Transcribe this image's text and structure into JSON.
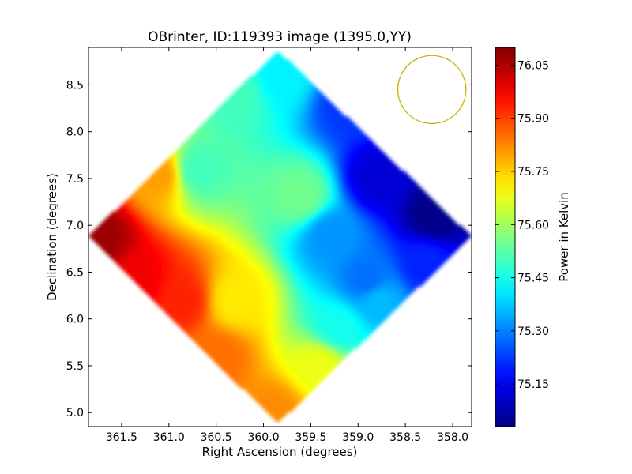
{
  "chart_data": {
    "type": "heatmap",
    "title": "OBrinter, ID:119393 image (1395.0,YY)",
    "xlabel": "Right Ascension (degrees)",
    "ylabel": "Declination (degrees)",
    "xlim": [
      361.85,
      357.8
    ],
    "ylim": [
      4.85,
      8.9
    ],
    "x_ticks": [
      {
        "value": 361.5,
        "label": "361.5"
      },
      {
        "value": 361.0,
        "label": "361.0"
      },
      {
        "value": 360.5,
        "label": "360.5"
      },
      {
        "value": 360.0,
        "label": "360.0"
      },
      {
        "value": 359.5,
        "label": "359.5"
      },
      {
        "value": 359.0,
        "label": "359.0"
      },
      {
        "value": 358.5,
        "label": "358.5"
      },
      {
        "value": 358.0,
        "label": "358.0"
      }
    ],
    "y_ticks": [
      {
        "value": 5.0,
        "label": "5.0"
      },
      {
        "value": 5.5,
        "label": "5.5"
      },
      {
        "value": 6.0,
        "label": "6.0"
      },
      {
        "value": 6.5,
        "label": "6.5"
      },
      {
        "value": 7.0,
        "label": "7.0"
      },
      {
        "value": 7.5,
        "label": "7.5"
      },
      {
        "value": 8.0,
        "label": "8.0"
      },
      {
        "value": 8.5,
        "label": "8.5"
      }
    ],
    "colorbar": {
      "label": "Power in Kelvin",
      "range": [
        75.03,
        76.1
      ],
      "ticks": [
        {
          "value": 75.15,
          "label": "75.15"
        },
        {
          "value": 75.3,
          "label": "75.30"
        },
        {
          "value": 75.45,
          "label": "75.45"
        },
        {
          "value": 75.6,
          "label": "75.60"
        },
        {
          "value": 75.75,
          "label": "75.75"
        },
        {
          "value": 75.9,
          "label": "75.90"
        },
        {
          "value": 76.05,
          "label": "76.05"
        }
      ],
      "colormap": "jet"
    },
    "coverage": {
      "shape": "diamond",
      "vertices": [
        [
          359.85,
          8.87
        ],
        [
          357.8,
          6.88
        ],
        [
          359.85,
          4.88
        ],
        [
          361.85,
          6.88
        ]
      ]
    },
    "field_samples": [
      {
        "ra": 361.75,
        "dec": 6.85,
        "value": 76.07
      },
      {
        "ra": 361.35,
        "dec": 6.4,
        "value": 75.98
      },
      {
        "ra": 360.85,
        "dec": 6.2,
        "value": 75.93
      },
      {
        "ra": 360.5,
        "dec": 5.6,
        "value": 75.85
      },
      {
        "ra": 359.9,
        "dec": 5.0,
        "value": 75.82
      },
      {
        "ra": 361.1,
        "dec": 7.55,
        "value": 75.8
      },
      {
        "ra": 360.3,
        "dec": 6.2,
        "value": 75.72
      },
      {
        "ra": 359.4,
        "dec": 5.5,
        "value": 75.68
      },
      {
        "ra": 360.7,
        "dec": 7.6,
        "value": 75.5
      },
      {
        "ra": 360.3,
        "dec": 8.4,
        "value": 75.5
      },
      {
        "ra": 359.6,
        "dec": 7.3,
        "value": 75.55
      },
      {
        "ra": 359.2,
        "dec": 5.9,
        "value": 75.45
      },
      {
        "ra": 359.8,
        "dec": 8.6,
        "value": 75.42
      },
      {
        "ra": 359.3,
        "dec": 6.9,
        "value": 75.32
      },
      {
        "ra": 358.8,
        "dec": 6.2,
        "value": 75.36
      },
      {
        "ra": 359.1,
        "dec": 8.3,
        "value": 75.22
      },
      {
        "ra": 358.3,
        "dec": 6.6,
        "value": 75.2
      },
      {
        "ra": 358.8,
        "dec": 7.5,
        "value": 75.12
      },
      {
        "ra": 358.2,
        "dec": 7.1,
        "value": 75.04
      },
      {
        "ra": 358.9,
        "dec": 6.4,
        "value": 75.28
      }
    ],
    "beam_marker": {
      "ra": 358.22,
      "dec": 8.45,
      "radius_deg": 0.36,
      "color": "#c8b400"
    },
    "grid": false,
    "legend": "none"
  }
}
